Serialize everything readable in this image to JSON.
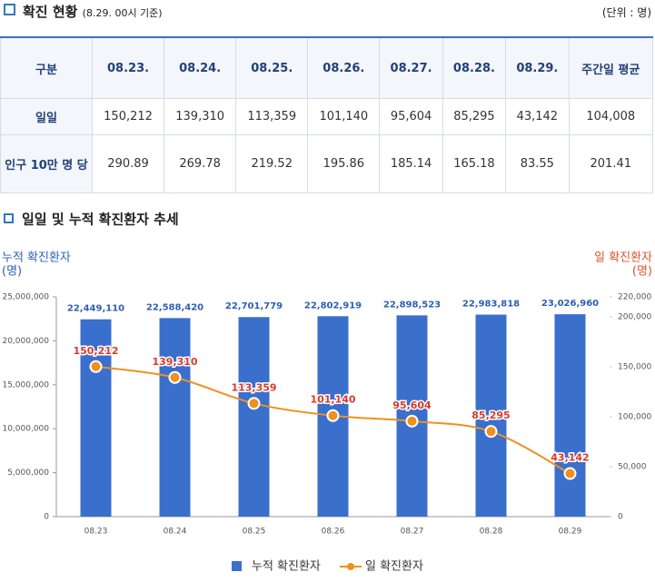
{
  "header": {
    "title": "확진 현황",
    "subtitle": "(8.29. 00시 기준)",
    "unit": "(단위 : 명)"
  },
  "table": {
    "columns": [
      "구분",
      "08.23.",
      "08.24.",
      "08.25.",
      "08.26.",
      "08.27.",
      "08.28.",
      "08.29.",
      "주간일 평균"
    ],
    "rows": [
      [
        "일일",
        "150,212",
        "139,310",
        "113,359",
        "101,140",
        "95,604",
        "85,295",
        "43,142",
        "104,008"
      ],
      [
        "인구 10만 명 당",
        "290.89",
        "269.78",
        "219.52",
        "195.86",
        "185.14",
        "165.18",
        "83.55",
        "201.41"
      ]
    ]
  },
  "chart_data": {
    "type": "bar",
    "title": "일일 및 누적 확진환자 추세",
    "y_label": "누적 확진환자",
    "y_unit": "(명)",
    "y2_label": "일 확진환자",
    "y2_unit": "(명)",
    "categories": [
      "08.23",
      "08.24",
      "08.25",
      "08.26",
      "08.27",
      "08.28",
      "08.29"
    ],
    "series": [
      {
        "name": "누적 확진환자",
        "type": "bar",
        "color": "#3a6fcc",
        "values": [
          22449110,
          22588420,
          22701779,
          22802919,
          22898523,
          22983818,
          23026960
        ],
        "value_labels": [
          "22,449,110",
          "22,588,420",
          "22,701,779",
          "22,802,919",
          "22,898,523",
          "22,983,818",
          "23,026,960"
        ]
      },
      {
        "name": "일 확진환자",
        "type": "line",
        "axis": "y2",
        "color": "#f0901e",
        "values": [
          150212,
          139310,
          113359,
          101140,
          95604,
          85295,
          43142
        ],
        "value_labels": [
          "150,212",
          "139,310",
          "113,359",
          "101,140",
          "95,604",
          "85,295",
          "43,142"
        ]
      }
    ],
    "ylim": [
      0,
      25000000
    ],
    "yticks": [
      0,
      {
        "value": 5000000,
        "label": "5,000,000"
      },
      {
        "value": 10000000,
        "label": "10,000,000"
      },
      {
        "value": 15000000,
        "label": "15,000,000"
      },
      {
        "value": 20000000,
        "label": "20,000,000"
      },
      {
        "value": 25000000,
        "label": "25,000,000"
      }
    ],
    "y2lim": [
      0,
      220000
    ],
    "y2ticks": [
      0,
      {
        "value": 50000,
        "label": "50,000"
      },
      {
        "value": 100000,
        "label": "100,000"
      },
      {
        "value": 150000,
        "label": "150,000"
      },
      {
        "value": 200000,
        "label": "200,000"
      },
      {
        "value": 220000,
        "label": "220,000"
      }
    ],
    "legend": "bottom"
  }
}
